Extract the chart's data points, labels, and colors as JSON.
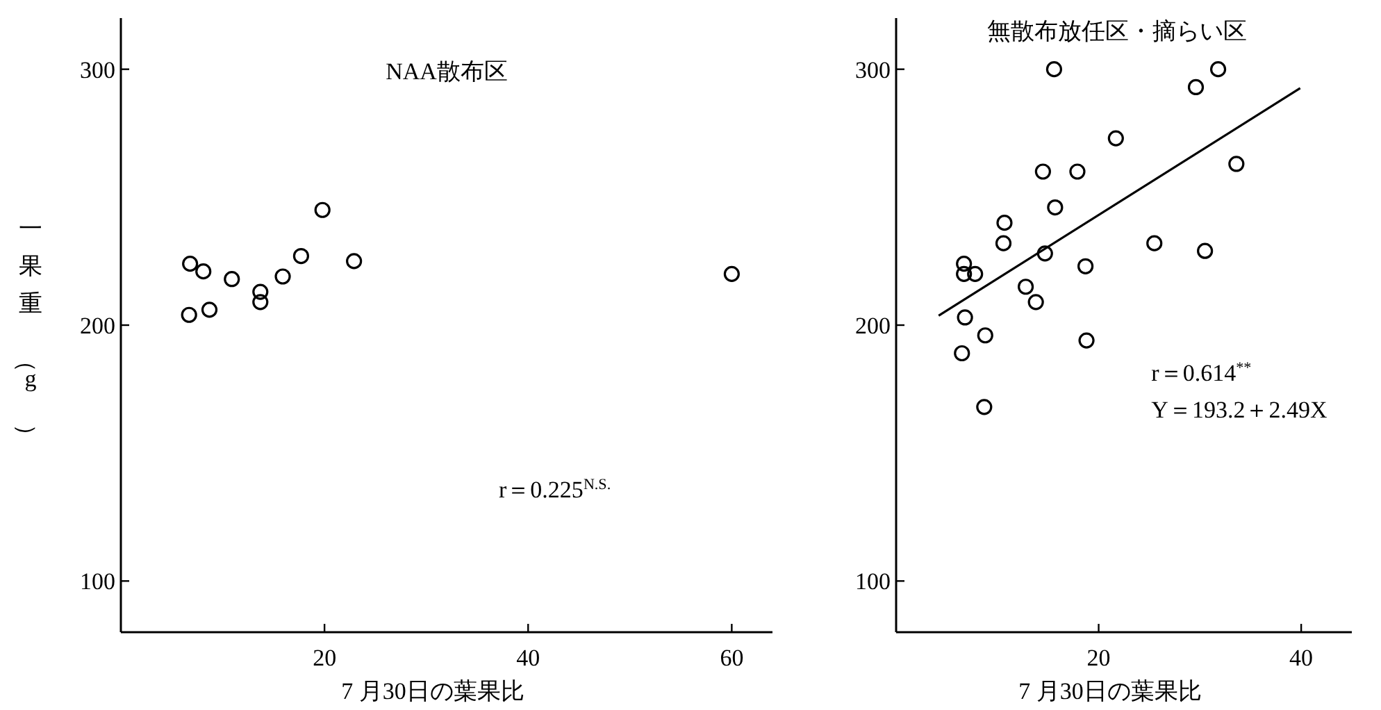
{
  "chart_data": [
    {
      "type": "scatter",
      "title": "NAA散布区",
      "xlabel": "7 月30日の葉果比",
      "ylabel": "一果重（g）",
      "xlim": [
        0,
        64
      ],
      "ylim": [
        80,
        320
      ],
      "xticks": [
        20,
        40,
        60
      ],
      "yticks": [
        100,
        200,
        300
      ],
      "grid": false,
      "marker": "circle",
      "series": [
        {
          "color": "#000000",
          "x": [
            6.8,
            8.1,
            6.7,
            8.7,
            10.9,
            13.7,
            13.7,
            15.9,
            17.7,
            19.8,
            22.9,
            60
          ],
          "values": [
            224,
            221,
            204,
            206,
            218,
            213,
            209,
            219,
            227,
            245,
            225,
            220
          ]
        }
      ],
      "annotations": [
        "r＝0.225$^{N.S.}$"
      ]
    },
    {
      "type": "scatter",
      "title": "無散布放任区・摘らい区",
      "xlabel": "7 月30日の葉果比",
      "xlim": [
        0,
        45
      ],
      "ylim": [
        80,
        320
      ],
      "xticks": [
        20,
        40
      ],
      "yticks": [
        100,
        200,
        300
      ],
      "grid": false,
      "marker": "circle",
      "series": [
        {
          "color": "#000000",
          "x": [
            15.6,
            29.6,
            31.8,
            21.7,
            33.6,
            14.5,
            17.9,
            15.7,
            10.7,
            10.6,
            25.5,
            30.5,
            14.7,
            6.7,
            6.7,
            7.8,
            18.7,
            12.8,
            13.8,
            6.8,
            8.8,
            18.8,
            6.5,
            8.7
          ],
          "values": [
            300,
            293,
            300,
            273,
            263,
            260,
            260,
            246,
            240,
            232,
            232,
            229,
            228,
            224,
            220,
            220,
            223,
            215,
            209,
            203,
            196,
            194,
            189,
            168
          ]
        },
        {
          "type": "line",
          "color": "#000000",
          "marker": "none",
          "x": [
            4.2,
            39.9
          ],
          "values": [
            203.7,
            292.6
          ]
        }
      ],
      "annotations": [
        "r＝0.614$^{**}$",
        "Y＝193.2＋2.49X"
      ]
    }
  ]
}
